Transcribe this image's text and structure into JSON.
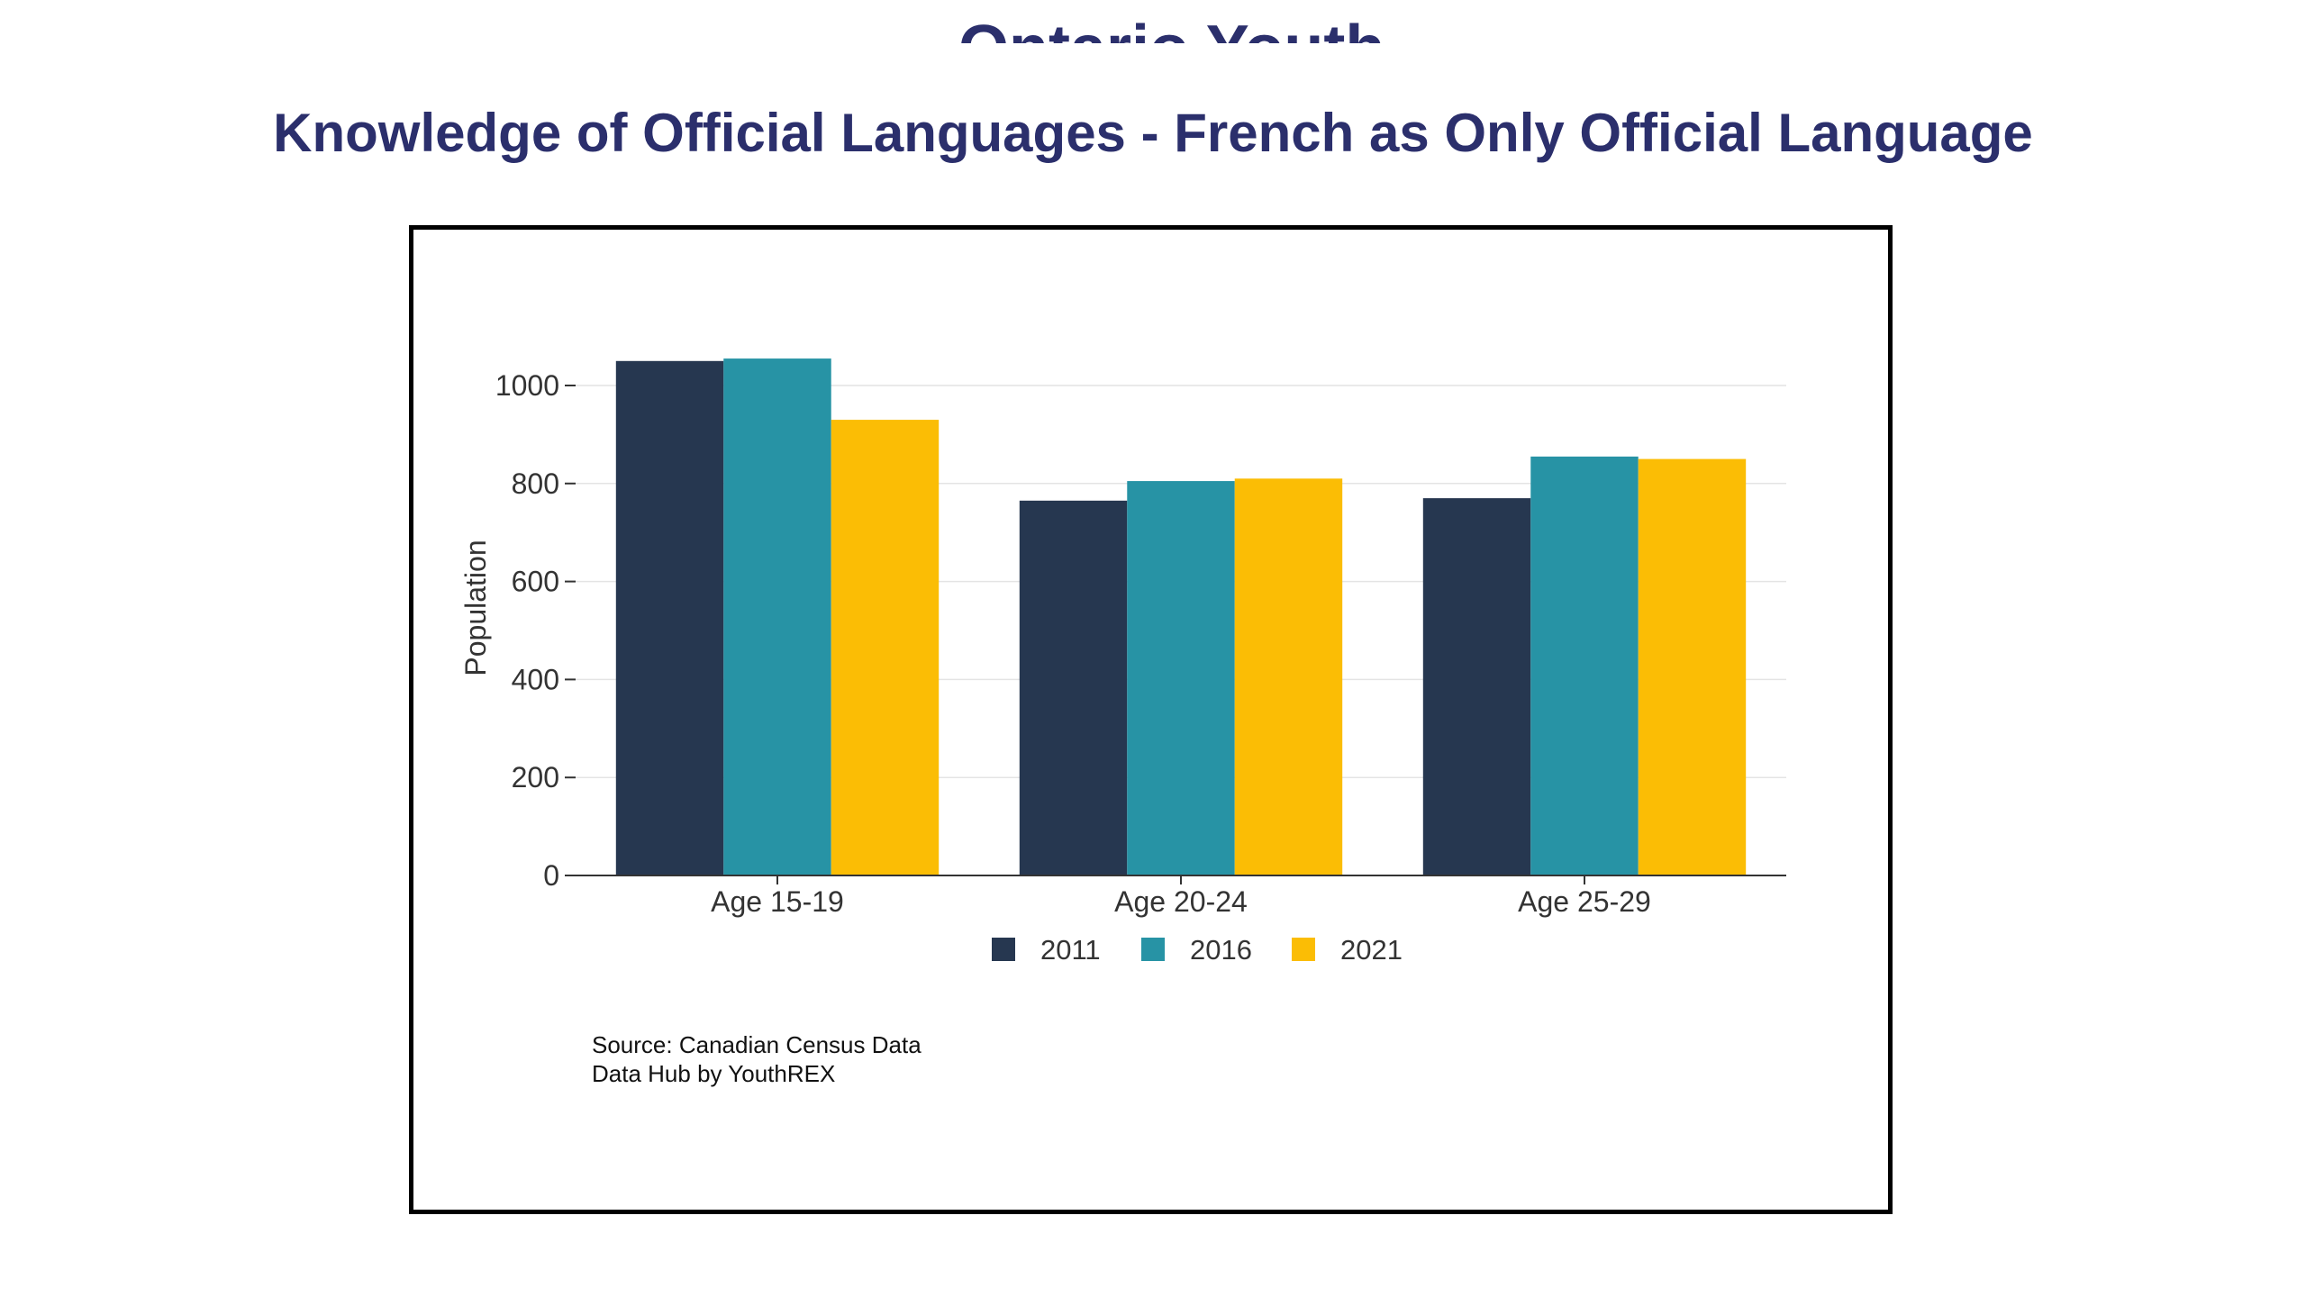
{
  "heading_clipped": "Ontario Youth",
  "page_title": "Knowledge of Official Languages - French as Only Official Language",
  "colors": {
    "title": "#2b2f6c",
    "series_2011": "#263750",
    "series_2016": "#2793a5",
    "series_2021": "#fbbd05"
  },
  "chart_data": {
    "type": "bar",
    "title": "",
    "xlabel": "",
    "ylabel": "Population",
    "categories": [
      "Age 15-19",
      "Age 20-24",
      "Age 25-29"
    ],
    "series": [
      {
        "name": "2011",
        "color": "#263750",
        "values": [
          1050,
          765,
          770
        ]
      },
      {
        "name": "2016",
        "color": "#2793a5",
        "values": [
          1055,
          805,
          855
        ]
      },
      {
        "name": "2021",
        "color": "#fbbd05",
        "values": [
          930,
          810,
          850
        ]
      }
    ],
    "ylim": [
      0,
      1000
    ],
    "yticks": [
      0,
      200,
      400,
      600,
      800,
      1000
    ],
    "grid": true,
    "legend_position": "bottom",
    "source_lines": [
      "Source: Canadian Census Data",
      "Data Hub by YouthREX"
    ]
  }
}
